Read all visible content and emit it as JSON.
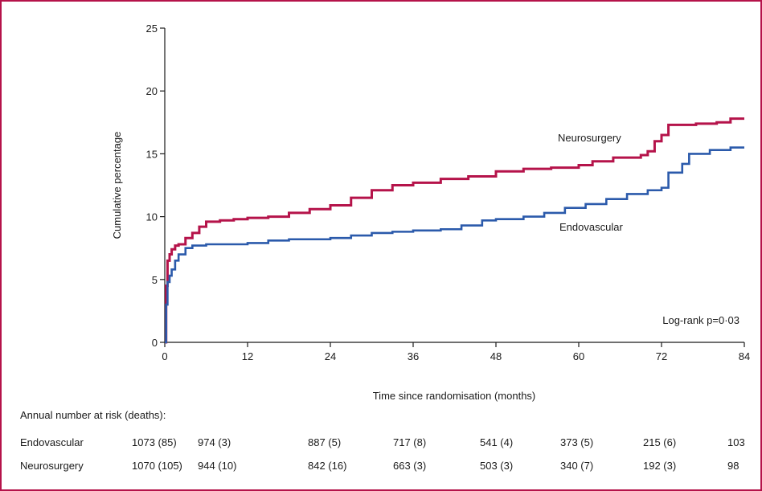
{
  "chart_data": {
    "type": "line",
    "title": "",
    "xlabel": "Time since randomisation (months)",
    "ylabel": "Cumulative percentage",
    "xlim": [
      0,
      84
    ],
    "ylim": [
      0,
      25
    ],
    "x_ticks": [
      "0",
      "12",
      "24",
      "36",
      "48",
      "60",
      "72",
      "84"
    ],
    "y_ticks": [
      "0",
      "5",
      "10",
      "15",
      "20",
      "25"
    ],
    "grid": false,
    "annotation": "Log-rank p=0·03",
    "series": [
      {
        "name": "Neurosurgery",
        "color": "#b5134a",
        "points": [
          [
            0,
            0
          ],
          [
            0.2,
            4.5
          ],
          [
            0.4,
            6.5
          ],
          [
            0.7,
            7.0
          ],
          [
            1.0,
            7.4
          ],
          [
            1.5,
            7.7
          ],
          [
            2.0,
            7.8
          ],
          [
            3.0,
            8.3
          ],
          [
            4.0,
            8.7
          ],
          [
            5.0,
            9.2
          ],
          [
            6.0,
            9.6
          ],
          [
            8.0,
            9.7
          ],
          [
            10.0,
            9.8
          ],
          [
            12.0,
            9.9
          ],
          [
            15.0,
            10.0
          ],
          [
            18.0,
            10.3
          ],
          [
            21.0,
            10.6
          ],
          [
            24.0,
            10.9
          ],
          [
            27.0,
            11.5
          ],
          [
            30.0,
            12.1
          ],
          [
            33.0,
            12.5
          ],
          [
            36.0,
            12.7
          ],
          [
            40.0,
            13.0
          ],
          [
            44.0,
            13.2
          ],
          [
            48.0,
            13.6
          ],
          [
            52.0,
            13.8
          ],
          [
            56.0,
            13.9
          ],
          [
            60.0,
            14.1
          ],
          [
            62.0,
            14.4
          ],
          [
            65.0,
            14.7
          ],
          [
            69.0,
            14.9
          ],
          [
            70.0,
            15.2
          ],
          [
            71.0,
            16.0
          ],
          [
            72.0,
            16.5
          ],
          [
            73.0,
            17.3
          ],
          [
            77.0,
            17.4
          ],
          [
            80.0,
            17.5
          ],
          [
            82.0,
            17.8
          ],
          [
            84.0,
            17.8
          ]
        ]
      },
      {
        "name": "Endovascular",
        "color": "#2b5aab",
        "points": [
          [
            0,
            0
          ],
          [
            0.2,
            3.0
          ],
          [
            0.4,
            4.8
          ],
          [
            0.7,
            5.3
          ],
          [
            1.0,
            5.8
          ],
          [
            1.5,
            6.5
          ],
          [
            2.0,
            7.0
          ],
          [
            3.0,
            7.5
          ],
          [
            4.0,
            7.7
          ],
          [
            6.0,
            7.8
          ],
          [
            9.0,
            7.8
          ],
          [
            12.0,
            7.9
          ],
          [
            15.0,
            8.1
          ],
          [
            18.0,
            8.2
          ],
          [
            21.0,
            8.2
          ],
          [
            24.0,
            8.3
          ],
          [
            27.0,
            8.5
          ],
          [
            30.0,
            8.7
          ],
          [
            33.0,
            8.8
          ],
          [
            36.0,
            8.9
          ],
          [
            40.0,
            9.0
          ],
          [
            43.0,
            9.3
          ],
          [
            46.0,
            9.7
          ],
          [
            48.0,
            9.8
          ],
          [
            52.0,
            10.0
          ],
          [
            55.0,
            10.3
          ],
          [
            58.0,
            10.7
          ],
          [
            61.0,
            11.0
          ],
          [
            64.0,
            11.4
          ],
          [
            67.0,
            11.8
          ],
          [
            70.0,
            12.1
          ],
          [
            72.0,
            12.3
          ],
          [
            73.0,
            13.5
          ],
          [
            75.0,
            14.2
          ],
          [
            76.0,
            15.0
          ],
          [
            79.0,
            15.3
          ],
          [
            82.0,
            15.5
          ],
          [
            84.0,
            15.5
          ]
        ]
      }
    ],
    "series_labels": [
      {
        "text": "Neurosurgery",
        "x": 0,
        "y": 0
      },
      {
        "text": "Endovascular",
        "x": 0,
        "y": 0
      }
    ]
  },
  "risk_table": {
    "heading": "Annual number at risk (deaths):",
    "rows": [
      {
        "label": "Endovascular",
        "values": [
          "1073 (85)",
          "974 (3)",
          "887 (5)",
          "717 (8)",
          "541 (4)",
          "373 (5)",
          "215 (6)",
          "103"
        ]
      },
      {
        "label": "Neurosurgery",
        "values": [
          "1070 (105)",
          "944 (10)",
          "842 (16)",
          "663 (3)",
          "503 (3)",
          "340 (7)",
          "192 (3)",
          "98"
        ]
      }
    ]
  }
}
